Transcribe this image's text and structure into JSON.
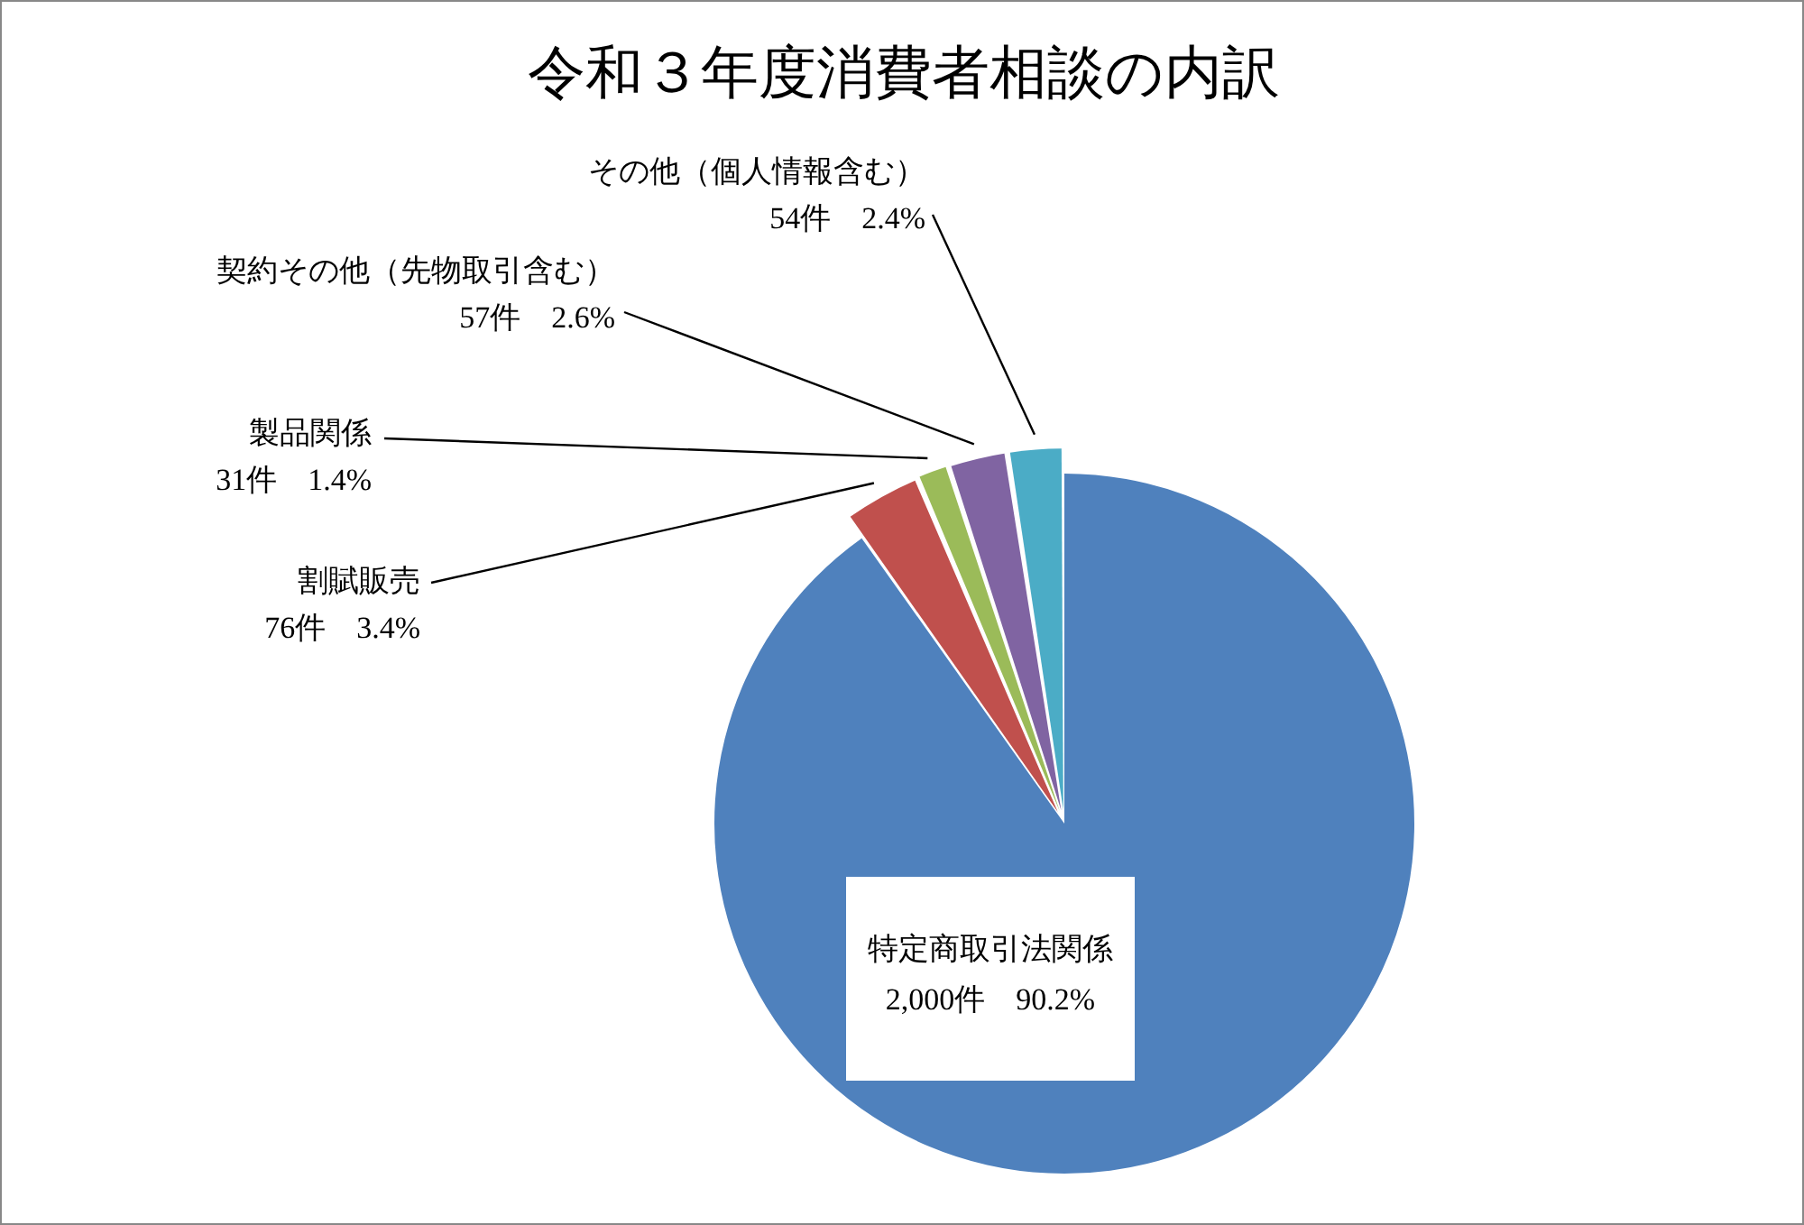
{
  "chart_data": {
    "type": "pie",
    "title": "令和３年度消費者相談の内訳",
    "categories": [
      "特定商取引法関係",
      "割賦販売",
      "製品関係",
      "契約その他（先物取引含む）",
      "その他（個人情報含む）"
    ],
    "values": [
      2000,
      76,
      31,
      57,
      54
    ],
    "colors": [
      "#4f81bd",
      "#c0504d",
      "#9bbb59",
      "#8064a2",
      "#4bacc6"
    ],
    "value_labels": [
      "2,000件　90.2%",
      "76件　3.4%",
      "31件　1.4%",
      "57件　2.6%",
      "54件　2.4%"
    ],
    "legend": false
  }
}
